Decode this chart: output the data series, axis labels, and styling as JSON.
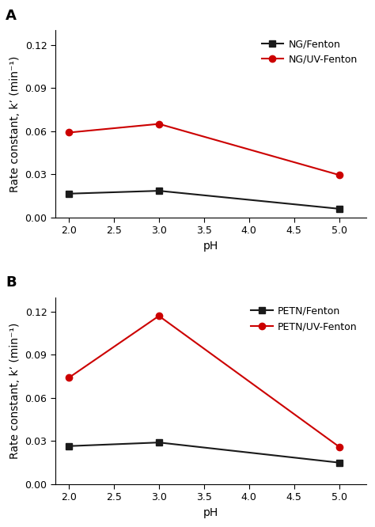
{
  "panel_A": {
    "title": "A",
    "x": [
      2.0,
      3.0,
      5.0
    ],
    "black_y": [
      0.0165,
      0.0185,
      0.006
    ],
    "red_y": [
      0.059,
      0.065,
      0.0295
    ],
    "black_label": "NG/Fenton",
    "red_label": "NG/UV-Fenton"
  },
  "panel_B": {
    "title": "B",
    "x": [
      2.0,
      3.0,
      5.0
    ],
    "black_y": [
      0.0265,
      0.029,
      0.015
    ],
    "red_y": [
      0.074,
      0.117,
      0.026
    ],
    "black_label": "PETN/Fenton",
    "red_label": "PETN/UV-Fenton"
  },
  "ylim": [
    0.0,
    0.13
  ],
  "yticks": [
    0.0,
    0.03,
    0.06,
    0.09,
    0.12
  ],
  "xticks": [
    2.0,
    2.5,
    3.0,
    3.5,
    4.0,
    4.5,
    5.0
  ],
  "xlabel": "pH",
  "ylabel": "Rate constant, k’ (min⁻¹)",
  "black_color": "#1a1a1a",
  "red_color": "#cc0000",
  "marker_black": "s",
  "marker_red": "o",
  "linewidth": 1.5,
  "markersize": 6,
  "fontsize_label": 10,
  "fontsize_tick": 9,
  "fontsize_panel": 13,
  "fontsize_legend": 9
}
